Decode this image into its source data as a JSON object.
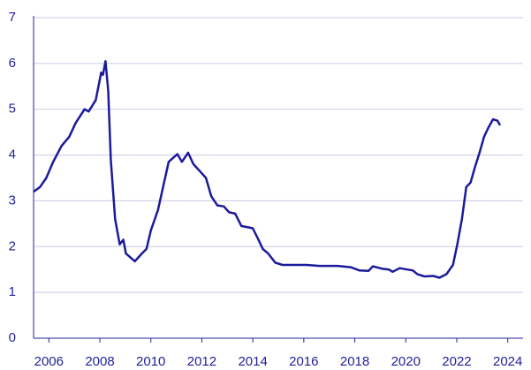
{
  "chart_data": {
    "type": "line",
    "x": [
      2005.4,
      2005.65,
      2005.9,
      2006.17,
      2006.5,
      2006.8,
      2007.05,
      2007.4,
      2007.56,
      2007.84,
      2008.05,
      2008.12,
      2008.22,
      2008.33,
      2008.43,
      2008.6,
      2008.78,
      2008.92,
      2009.02,
      2009.37,
      2009.65,
      2009.83,
      2010.0,
      2010.28,
      2010.52,
      2010.7,
      2011.04,
      2011.22,
      2011.46,
      2011.67,
      2011.92,
      2012.16,
      2012.37,
      2012.61,
      2012.86,
      2013.07,
      2013.31,
      2013.55,
      2014.0,
      2014.18,
      2014.39,
      2014.6,
      2014.88,
      2015.16,
      2015.57,
      2016.1,
      2016.62,
      2017.32,
      2017.84,
      2018.19,
      2018.54,
      2018.71,
      2019.06,
      2019.34,
      2019.48,
      2019.76,
      2020.28,
      2020.45,
      2020.73,
      2021.08,
      2021.32,
      2021.6,
      2021.85,
      2022.02,
      2022.2,
      2022.37,
      2022.54,
      2022.72,
      2022.89,
      2023.07,
      2023.24,
      2023.42,
      2023.6,
      2023.7
    ],
    "series": [
      {
        "color": "#1c1a9a",
        "values": [
          3.2,
          3.3,
          3.5,
          3.85,
          4.2,
          4.4,
          4.7,
          5.0,
          4.95,
          5.2,
          5.8,
          5.75,
          6.05,
          5.4,
          3.9,
          2.6,
          2.05,
          2.15,
          1.85,
          1.68,
          1.85,
          1.95,
          2.35,
          2.8,
          3.4,
          3.85,
          4.02,
          3.85,
          4.05,
          3.8,
          3.65,
          3.5,
          3.1,
          2.9,
          2.88,
          2.75,
          2.72,
          2.45,
          2.4,
          2.2,
          1.95,
          1.85,
          1.65,
          1.6,
          1.6,
          1.6,
          1.58,
          1.58,
          1.55,
          1.48,
          1.47,
          1.57,
          1.52,
          1.5,
          1.45,
          1.53,
          1.48,
          1.4,
          1.35,
          1.36,
          1.32,
          1.4,
          1.6,
          2.05,
          2.6,
          3.3,
          3.4,
          3.75,
          4.05,
          4.4,
          4.6,
          4.78,
          4.75,
          4.65
        ]
      }
    ],
    "xlim": [
      2005.4,
      2024.6
    ],
    "xticks": [
      2006,
      2008,
      2010,
      2012,
      2014,
      2016,
      2018,
      2020,
      2022,
      2024
    ],
    "ylim": [
      0,
      7
    ],
    "yticks": [
      0,
      1,
      2,
      3,
      4,
      5,
      6,
      7
    ],
    "grid": true
  }
}
